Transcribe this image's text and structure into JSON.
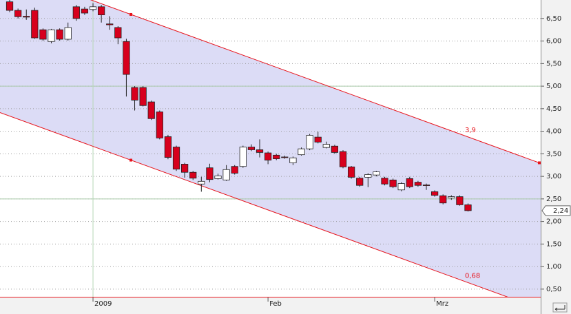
{
  "chart_data": {
    "type": "candlestick",
    "open": [
      6.87,
      6.68,
      6.55,
      6.68,
      6.25,
      5.99,
      6.25,
      6.04,
      6.76,
      6.71,
      6.7,
      6.76,
      6.38,
      6.3,
      5.99,
      4.97,
      4.97,
      4.65,
      4.43,
      3.88,
      3.65,
      3.27,
      3.09,
      2.83,
      3.19,
      2.95,
      2.92,
      3.22,
      3.22,
      3.65,
      3.59,
      3.52,
      3.47,
      3.43,
      3.3,
      3.48,
      3.61,
      3.87,
      3.64,
      3.67,
      3.55,
      3.21,
      2.96,
      2.98,
      3.03,
      2.96,
      2.92,
      2.7,
      2.95,
      2.87,
      2.81,
      2.66,
      2.57,
      2.52,
      2.55,
      2.37
    ],
    "high": [
      6.91,
      6.72,
      6.7,
      6.74,
      6.28,
      6.27,
      6.28,
      6.41,
      6.8,
      6.76,
      6.84,
      6.8,
      6.55,
      6.33,
      6.05,
      5.0,
      5.0,
      4.68,
      4.46,
      3.92,
      3.68,
      3.3,
      3.12,
      2.99,
      3.28,
      3.06,
      3.25,
      3.25,
      3.68,
      3.71,
      3.82,
      3.55,
      3.5,
      3.46,
      3.44,
      3.64,
      3.94,
      3.99,
      3.77,
      3.7,
      3.58,
      3.23,
      2.99,
      3.07,
      3.12,
      2.99,
      2.95,
      2.87,
      2.99,
      2.9,
      2.84,
      2.69,
      2.6,
      2.58,
      2.58,
      2.4
    ],
    "low": [
      6.64,
      6.5,
      6.47,
      6.05,
      6.0,
      5.95,
      6.01,
      6.01,
      6.45,
      6.58,
      6.66,
      6.41,
      6.25,
      5.93,
      4.77,
      4.46,
      4.55,
      4.25,
      3.82,
      3.38,
      3.12,
      2.97,
      2.92,
      2.66,
      2.87,
      2.93,
      2.9,
      3.04,
      3.19,
      3.56,
      3.42,
      3.27,
      3.36,
      3.39,
      3.25,
      3.46,
      3.58,
      3.73,
      3.62,
      3.5,
      3.18,
      2.95,
      2.77,
      2.76,
      3.0,
      2.8,
      2.74,
      2.67,
      2.74,
      2.77,
      2.7,
      2.55,
      2.38,
      2.48,
      2.35,
      2.22
    ],
    "close": [
      6.68,
      6.54,
      6.53,
      6.07,
      6.04,
      6.25,
      6.04,
      6.3,
      6.5,
      6.62,
      6.76,
      6.58,
      6.36,
      6.07,
      5.26,
      4.69,
      4.57,
      4.28,
      3.85,
      3.42,
      3.16,
      3.09,
      2.96,
      2.89,
      2.93,
      3.01,
      3.15,
      3.07,
      3.65,
      3.59,
      3.53,
      3.36,
      3.39,
      3.42,
      3.41,
      3.61,
      3.91,
      3.76,
      3.71,
      3.53,
      3.21,
      2.98,
      2.8,
      3.04,
      3.1,
      2.83,
      2.77,
      2.84,
      2.77,
      2.8,
      2.8,
      2.58,
      2.41,
      2.55,
      2.37,
      2.24
    ],
    "up_color": "#ffffff",
    "down_color": "#d7001d",
    "xlim": [
      -1.16,
      63.72
    ],
    "xticks": [
      {
        "value": 10,
        "label": "2009"
      },
      {
        "value": 31,
        "label": "Feb"
      },
      {
        "value": 51,
        "label": "Mrz"
      }
    ],
    "ylim": [
      0.33,
      6.91
    ],
    "yticks": [
      {
        "value": 0.5,
        "label": "0,50"
      },
      {
        "value": 1.0,
        "label": "1,00"
      },
      {
        "value": 1.5,
        "label": "1,50"
      },
      {
        "value": 2.0,
        "label": "2,00"
      },
      {
        "value": 2.5,
        "label": "2,50"
      },
      {
        "value": 3.0,
        "label": "3,00"
      },
      {
        "value": 3.5,
        "label": "3,50"
      },
      {
        "value": 4.0,
        "label": "4,00"
      },
      {
        "value": 4.5,
        "label": "4,50"
      },
      {
        "value": 5.0,
        "label": "5,00"
      },
      {
        "value": 5.5,
        "label": "5,50"
      },
      {
        "value": 6.0,
        "label": "6,00"
      },
      {
        "value": 6.5,
        "label": "6,50"
      }
    ],
    "grid": true,
    "hlines": [
      5.0,
      2.5
    ],
    "vlines": [
      10
    ],
    "channel": {
      "color": "#e8141c",
      "fill": "#dcdcf6",
      "upper": {
        "x": [
          14.55,
          63.55
        ],
        "y": [
          6.59,
          3.3
        ],
        "label": "3,9"
      },
      "lower": {
        "x": [
          14.55
        ],
        "y": [
          3.36
        ],
        "label": "0,68"
      }
    },
    "last_price": {
      "value": 2.24,
      "label": "2,24"
    }
  }
}
